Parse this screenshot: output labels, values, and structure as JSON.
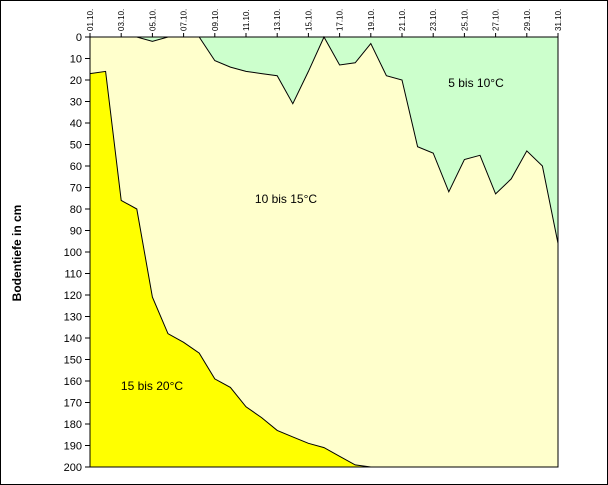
{
  "chart_data": {
    "type": "area",
    "ylabel": "Bodentiefe in cm",
    "yaxis_reversed": true,
    "ylim": [
      0,
      200
    ],
    "y_ticks": [
      0,
      10,
      20,
      30,
      40,
      50,
      60,
      70,
      80,
      90,
      100,
      110,
      120,
      130,
      140,
      150,
      160,
      170,
      180,
      190,
      200
    ],
    "xlim": [
      1,
      31
    ],
    "x_ticks": [
      1,
      3,
      5,
      7,
      9,
      11,
      13,
      15,
      17,
      19,
      21,
      23,
      25,
      27,
      29,
      31
    ],
    "x_tick_labels": [
      "01.10.",
      "03.10.",
      "05.10.",
      "07.10.",
      "09.10.",
      "11.10.",
      "13.10.",
      "15.10.",
      "17.10.",
      "19.10.",
      "21.10.",
      "23.10.",
      "25.10.",
      "27.10.",
      "29.10.",
      "31.10."
    ],
    "colors": {
      "band_5_10": "#CCFFCC",
      "band_10_15": "#FFFFCC",
      "band_15_20": "#FFFF00",
      "line": "#000000"
    },
    "regions": {
      "label_5_10": "5 bis 10°C",
      "label_10_15": "10 bis 15°C",
      "label_15_20": "15 bis 20°C"
    },
    "isotherm_10": {
      "x": [
        1,
        2,
        3,
        4,
        5,
        6,
        7,
        8,
        9,
        10,
        11,
        12,
        13,
        14,
        15,
        16,
        17,
        18,
        19,
        20,
        21,
        22,
        23,
        24,
        25,
        26,
        27,
        28,
        29,
        30,
        31
      ],
      "y": [
        0,
        0,
        0,
        0,
        2,
        0,
        0,
        0,
        11,
        14,
        16,
        17,
        18,
        31,
        16,
        0,
        13,
        12,
        3,
        18,
        20,
        51,
        54,
        72,
        57,
        55,
        73,
        66,
        53,
        60,
        96
      ]
    },
    "isotherm_15": {
      "x": [
        1,
        2,
        3,
        4,
        5,
        6,
        7,
        8,
        9,
        10,
        11,
        12,
        13,
        14,
        15,
        16,
        17,
        18,
        19
      ],
      "y": [
        17,
        16,
        76,
        80,
        121,
        138,
        142,
        147,
        159,
        163,
        172,
        177,
        183,
        186,
        189,
        191,
        195,
        199,
        200
      ]
    }
  }
}
